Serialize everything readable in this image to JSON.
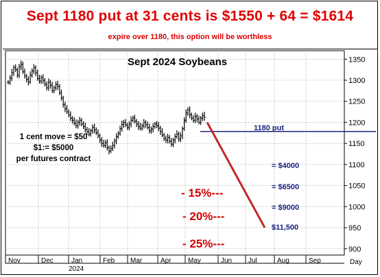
{
  "header": {
    "title": "Sept 1180 put at 31 cents is $1550 + 64 = $1614",
    "subtitle": "expire over 1180, this option will be worthless"
  },
  "annotations": {
    "contract_note": [
      "1 cent move = $50",
      "$1:= $5000",
      "per futures contract"
    ],
    "put_label": "1180 put",
    "percent_levels": [
      "- 15%---",
      "- 20%---",
      "- 25%---"
    ],
    "dollar_levels": [
      "= $4000",
      "= $6500",
      "= $9000",
      "$11,500"
    ]
  },
  "colors": {
    "header_text": "#e00000",
    "price_bars": "#000000",
    "put_line": "#1a237e",
    "projection_line": "#c0272d",
    "percent_text": "#d40000"
  },
  "chart_data": {
    "type": "ohlc",
    "title": "Sept 2024 Soybeans",
    "xlabel": "Day",
    "ylabel": "",
    "x_ticks": [
      "Nov",
      "Dec",
      "Jan",
      "Feb",
      "Mar",
      "Apr",
      "May",
      "Jun",
      "Jul",
      "Aug",
      "Sep"
    ],
    "x_year_label": "2024",
    "y_ticks": [
      900,
      950,
      1000,
      1050,
      1100,
      1150,
      1200,
      1250,
      1300,
      1350
    ],
    "ylim": [
      885,
      1370
    ],
    "grid": true,
    "closes": [
      1295,
      1305,
      1318,
      1330,
      1325,
      1312,
      1332,
      1338,
      1320,
      1310,
      1302,
      1296,
      1312,
      1322,
      1330,
      1318,
      1304,
      1298,
      1306,
      1300,
      1290,
      1282,
      1295,
      1288,
      1275,
      1282,
      1290,
      1285,
      1270,
      1258,
      1242,
      1232,
      1225,
      1218,
      1210,
      1205,
      1198,
      1192,
      1200,
      1205,
      1196,
      1190,
      1183,
      1178,
      1172,
      1180,
      1188,
      1182,
      1175,
      1168,
      1158,
      1150,
      1145,
      1152,
      1140,
      1132,
      1138,
      1145,
      1156,
      1166,
      1174,
      1185,
      1195,
      1200,
      1194,
      1188,
      1196,
      1205,
      1210,
      1203,
      1196,
      1190,
      1186,
      1192,
      1200,
      1195,
      1188,
      1180,
      1184,
      1190,
      1196,
      1192,
      1186,
      1178,
      1170,
      1162,
      1158,
      1164,
      1155,
      1148,
      1158,
      1166,
      1172,
      1160,
      1168,
      1185,
      1205,
      1222,
      1230,
      1218,
      1210,
      1205,
      1214,
      1208,
      1200,
      1210,
      1216,
      1212
    ],
    "put_strike": 1180,
    "projection": {
      "start": [
        "May",
        1200
      ],
      "end": [
        "Jul",
        950
      ]
    }
  }
}
